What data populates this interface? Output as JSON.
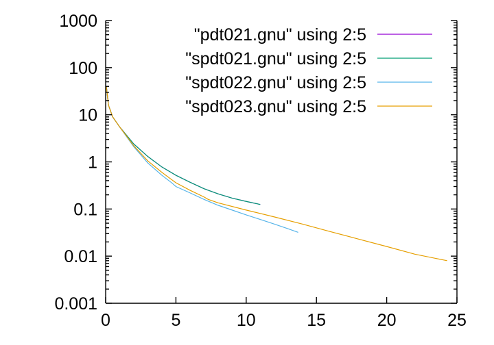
{
  "chart_data": {
    "type": "line",
    "title": "",
    "xlabel": "",
    "ylabel": "",
    "y_scale": "log",
    "xlim": [
      0,
      25
    ],
    "ylim": [
      0.001,
      1000
    ],
    "x_ticks": [
      0,
      5,
      10,
      15,
      20,
      25
    ],
    "x_tick_labels": [
      "0",
      "5",
      "10",
      "15",
      "20",
      "25"
    ],
    "y_ticks": [
      0.001,
      0.01,
      0.1,
      1,
      10,
      100,
      1000
    ],
    "y_tick_labels": [
      "0.001",
      "0.01",
      "0.1",
      "1",
      "10",
      "100",
      "1000"
    ],
    "grid": false,
    "legend_position": "top-right",
    "series": [
      {
        "name": "\"pdt021.gnu\" using 2:5",
        "color": "#9400d3",
        "x": [
          0.05,
          0.2,
          0.5,
          1,
          2,
          3,
          4,
          5,
          6,
          7,
          8,
          9,
          10,
          11
        ],
        "y": [
          40,
          16,
          9,
          5.5,
          2.4,
          1.3,
          0.78,
          0.52,
          0.37,
          0.27,
          0.21,
          0.17,
          0.145,
          0.125
        ]
      },
      {
        "name": "\"spdt021.gnu\" using 2:5",
        "color": "#009e73",
        "x": [
          0.05,
          0.2,
          0.5,
          1,
          2,
          3,
          4,
          5,
          6,
          7,
          8,
          9,
          10,
          11
        ],
        "y": [
          40,
          16,
          9,
          5.5,
          2.4,
          1.3,
          0.78,
          0.52,
          0.37,
          0.27,
          0.21,
          0.17,
          0.145,
          0.125
        ]
      },
      {
        "name": "\"spdt022.gnu\" using 2:5",
        "color": "#56b4e9",
        "x": [
          0.05,
          0.2,
          0.5,
          1,
          2,
          3,
          4,
          4.7,
          5,
          6,
          7,
          8,
          9,
          10,
          11,
          12,
          13,
          13.7
        ],
        "y": [
          40,
          16,
          9,
          5.5,
          2.1,
          0.95,
          0.52,
          0.36,
          0.3,
          0.22,
          0.16,
          0.12,
          0.095,
          0.075,
          0.06,
          0.048,
          0.038,
          0.032
        ]
      },
      {
        "name": "\"spdt023.gnu\" using 2:5",
        "color": "#e69f00",
        "x": [
          0.05,
          0.2,
          0.5,
          1,
          2,
          3,
          4,
          5,
          6,
          7,
          7.3,
          8,
          10,
          12,
          14,
          16,
          18,
          20,
          22,
          24.3
        ],
        "y": [
          40,
          16,
          9,
          5.5,
          2.2,
          1.05,
          0.6,
          0.36,
          0.25,
          0.18,
          0.16,
          0.135,
          0.095,
          0.068,
          0.048,
          0.033,
          0.023,
          0.016,
          0.011,
          0.008
        ]
      }
    ]
  }
}
